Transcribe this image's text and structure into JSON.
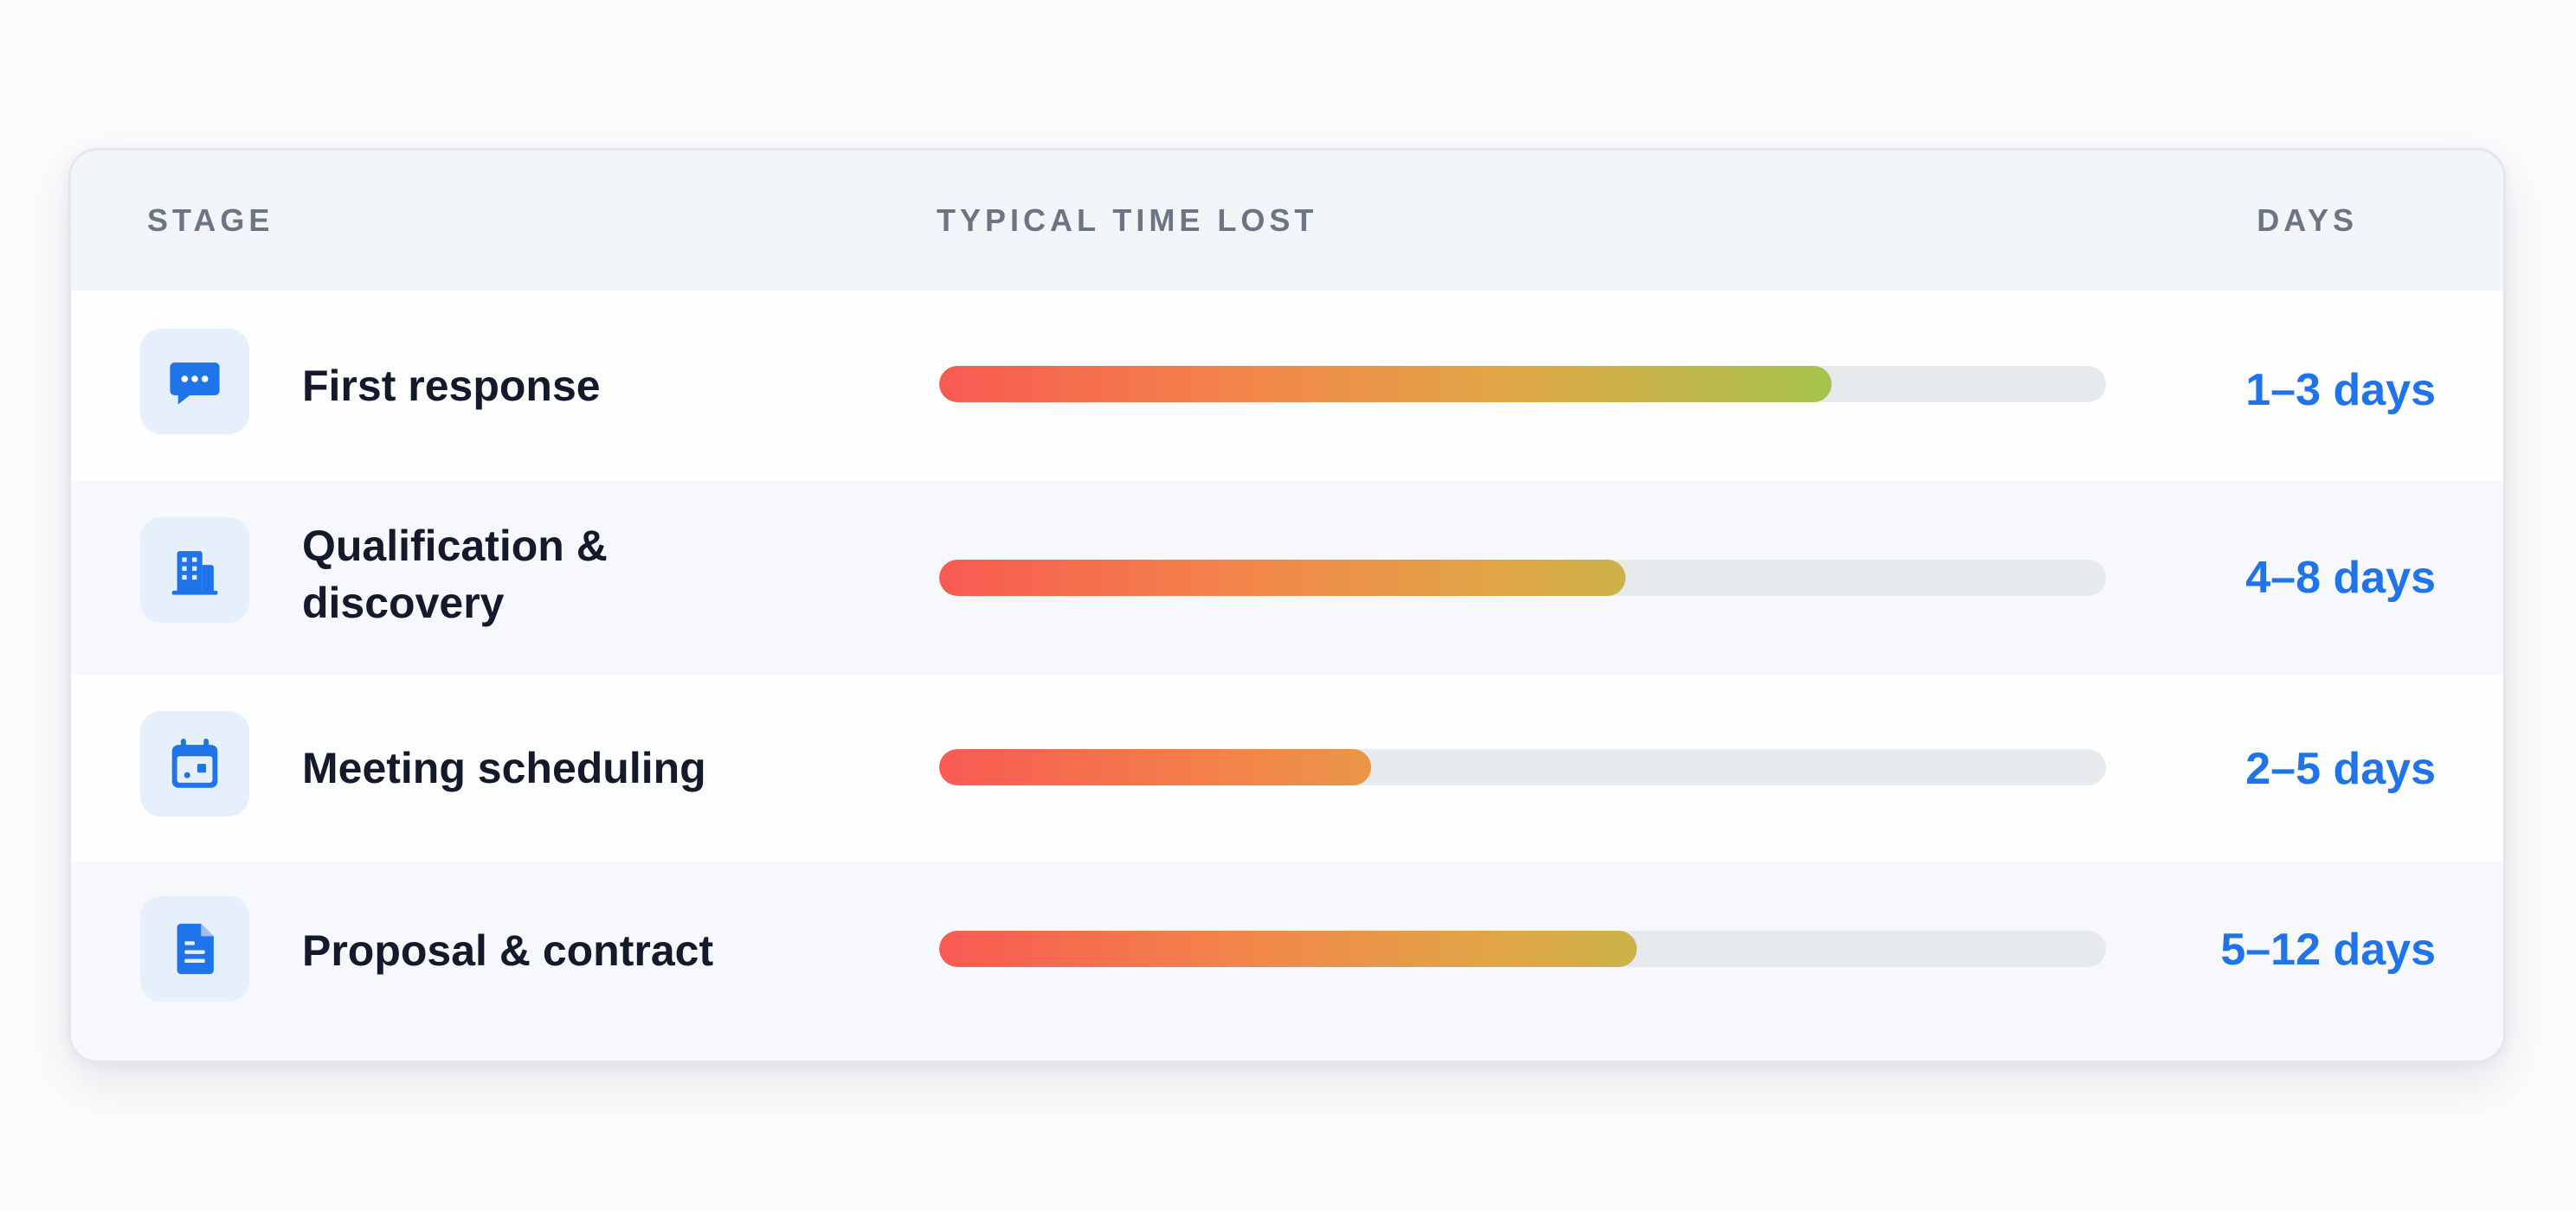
{
  "table": {
    "headers": {
      "stage": "STAGE",
      "time": "TYPICAL TIME LOST",
      "days": "DAYS"
    },
    "rows": [
      {
        "label": "First response",
        "days": "1–3 days",
        "icon": "chat-bubble-icon",
        "progress": 0.765
      },
      {
        "label": "Qualification & discovery",
        "days": "4–8 days",
        "icon": "building-icon",
        "progress": 0.588
      },
      {
        "label": "Meeting scheduling",
        "days": "2–5 days",
        "icon": "calendar-icon",
        "progress": 0.37
      },
      {
        "label": "Proposal & contract",
        "days": "5–12 days",
        "icon": "document-icon",
        "progress": 0.598
      }
    ]
  },
  "colors": {
    "accent": "#1e74e8",
    "bar_start": "#f85a52",
    "bar_mid": "#dfa946",
    "bar_end": "#6fcb56",
    "track": "#e7eaed"
  }
}
